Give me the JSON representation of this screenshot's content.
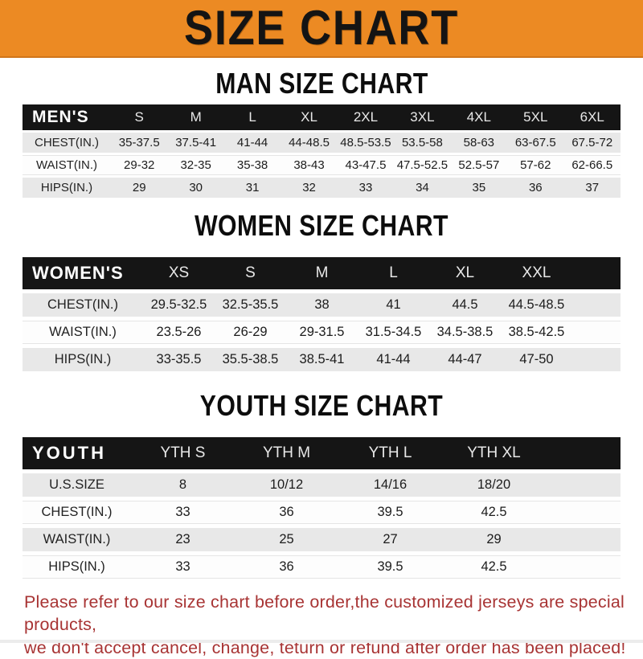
{
  "banner": {
    "title": "SIZE CHART"
  },
  "colors": {
    "banner_bg": "#EC8A23",
    "banner_text": "#141414",
    "header_bar": "#151515",
    "row_stripe": "#E8E8E8",
    "disclaimer_red": "#A83434"
  },
  "sections": [
    {
      "heading": "MAN SIZE CHART",
      "group": "MEN'S",
      "columns": [
        "S",
        "M",
        "L",
        "XL",
        "2XL",
        "3XL",
        "4XL",
        "5XL",
        "6XL"
      ],
      "rows": [
        {
          "label": "CHEST(IN.)",
          "values": [
            "35-37.5",
            "37.5-41",
            "41-44",
            "44-48.5",
            "48.5-53.5",
            "53.5-58",
            "58-63",
            "63-67.5",
            "67.5-72"
          ]
        },
        {
          "label": "WAIST(IN.)",
          "values": [
            "29-32",
            "32-35",
            "35-38",
            "38-43",
            "43-47.5",
            "47.5-52.5",
            "52.5-57",
            "57-62",
            "62-66.5"
          ]
        },
        {
          "label": "HIPS(IN.)",
          "values": [
            "29",
            "30",
            "31",
            "32",
            "33",
            "34",
            "35",
            "36",
            "37"
          ]
        }
      ]
    },
    {
      "heading": "WOMEN SIZE CHART",
      "group": "WOMEN'S",
      "columns": [
        "XS",
        "S",
        "M",
        "L",
        "XL",
        "XXL"
      ],
      "rows": [
        {
          "label": "CHEST(IN.)",
          "values": [
            "29.5-32.5",
            "32.5-35.5",
            "38",
            "41",
            "44.5",
            "44.5-48.5"
          ]
        },
        {
          "label": "WAIST(IN.)",
          "values": [
            "23.5-26",
            "26-29",
            "29-31.5",
            "31.5-34.5",
            "34.5-38.5",
            "38.5-42.5"
          ]
        },
        {
          "label": "HIPS(IN.)",
          "values": [
            "33-35.5",
            "35.5-38.5",
            "38.5-41",
            "41-44",
            "44-47",
            "47-50"
          ]
        }
      ]
    },
    {
      "heading": "YOUTH SIZE CHART",
      "group": "YOUTH",
      "columns": [
        "YTH S",
        "YTH M",
        "YTH L",
        "YTH XL"
      ],
      "rows": [
        {
          "label": "U.S.SIZE",
          "values": [
            "8",
            "10/12",
            "14/16",
            "18/20"
          ]
        },
        {
          "label": "CHEST(IN.)",
          "values": [
            "33",
            "36",
            "39.5",
            "42.5"
          ]
        },
        {
          "label": "WAIST(IN.)",
          "values": [
            "23",
            "25",
            "27",
            "29"
          ]
        },
        {
          "label": "HIPS(IN.)",
          "values": [
            "33",
            "36",
            "39.5",
            "42.5"
          ]
        }
      ]
    }
  ],
  "disclaimer": {
    "line1": "Please refer to our size chart before order,the customized jerseys are special products,",
    "line2": "we don't accept cancel, change, teturn or refund after order has been placed!"
  }
}
